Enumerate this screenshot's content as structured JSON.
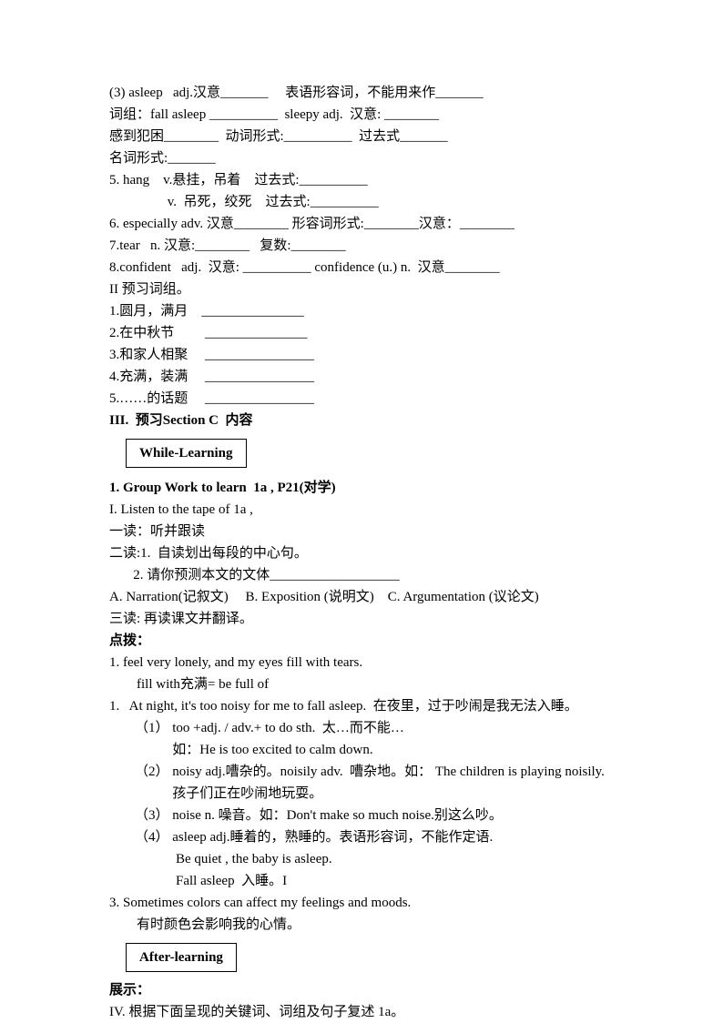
{
  "lines": {
    "l1": "(3) asleep   adj.汉意_______     表语形容词，不能用来作_______",
    "l2": "词组：fall asleep __________  sleepy adj.  汉意: ________",
    "l3": "感到犯困________  动词形式:__________  过去式_______",
    "l4": "名词形式:_______",
    "l5": "5. hang    v.悬挂，吊着    过去式:__________",
    "l6": "                 v.  吊死，绞死    过去式:__________",
    "l7": "6. especially adv. 汉意________ 形容词形式:________汉意：________",
    "l8": "7.tear   n. 汉意:________   复数:________",
    "l9": "8.confident   adj.  汉意: __________ confidence (u.) n.  汉意________",
    "l10": "II 预习词组。",
    "l11": "1.圆月，满月    _______________",
    "l12": "2.在中秋节         _______________",
    "l13": "3.和家人相聚     ________________",
    "l14": "4.充满，装满     ________________",
    "l15": "5.……的话题     ________________",
    "l16": "III.  预习Section C  内容",
    "box1": "While-Learning",
    "l17": "1. Group Work to learn  1a , P21(对学)",
    "l18": "I. Listen to the tape of 1a ,",
    "l19": "一读：听并跟读",
    "l20": "二读:1.  自读划出每段的中心句。",
    "l21": "       2. 请你预测本文的文体___________________",
    "l22": "A. Narration(记叙文)     B. Exposition (说明文)    C. Argumentation (议论文)",
    "l23": "三读: 再读课文并翻译。",
    "l24": "点拨：",
    "l25": "1. feel very lonely, and my eyes fill with tears.",
    "l26": "        fill with充满= be full of",
    "l27": "1.   At night, it's too noisy for me to fall asleep.  在夜里，过于吵闹是我无法入睡。",
    "l28": "（1） too +adj. / adv.+ to do sth.  太…而不能…",
    "l29": "           如：He is too excited to calm down.",
    "l30": "（2） noisy adj.嘈杂的。noisily adv.  嘈杂地。如： The children is playing noisily.",
    "l31": "           孩子们正在吵闹地玩耍。",
    "l32": "（3） noise n. 噪音。如：Don't make so much noise.别这么吵。",
    "l33": "（4） asleep adj.睡着的，熟睡的。表语形容词，不能作定语.",
    "l34": "            Be quiet , the baby is asleep.",
    "l35": "            Fall asleep  入睡。I",
    "l36": "3. Sometimes colors can affect my feelings and moods.",
    "l37": "        有时颜色会影响我的心情。",
    "box2": "After-learning",
    "l38": "展示：",
    "l39": "IV. 根据下面呈现的关键词、词组及句子复述 1a。"
  }
}
